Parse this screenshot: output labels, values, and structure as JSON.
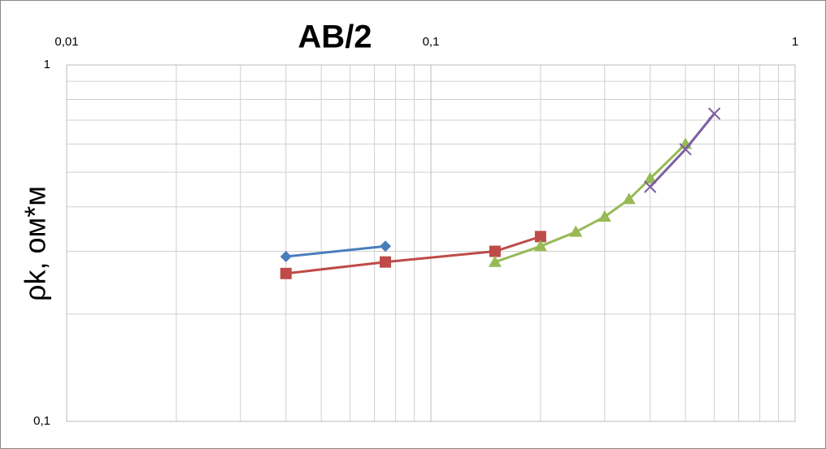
{
  "chart_data": {
    "type": "line",
    "title": "AB/2",
    "y_label": "ρk, ом*м",
    "xscale": "log",
    "yscale": "log",
    "grid": true,
    "xlim": [
      0.01,
      1
    ],
    "xticks": [
      {
        "value": 0.01,
        "label": "0,01"
      },
      {
        "value": 0.1,
        "label": "0,1"
      },
      1
    ],
    "xminorticks": [
      0.02,
      0.03,
      0.04,
      0.05,
      0.06,
      0.07,
      0.08,
      0.09,
      0.2,
      0.3,
      0.4,
      0.5,
      0.6,
      0.7,
      0.8,
      0.9
    ],
    "ylim": [
      0.1,
      1
    ],
    "yticks": [
      {
        "value": 0.1,
        "label": "0,1"
      },
      1
    ],
    "yminorticks": [
      0.2,
      0.3,
      0.4,
      0.5,
      0.6,
      0.7,
      0.8,
      0.9
    ],
    "series": [
      {
        "color": "#4a7ebb",
        "marker": "diamond",
        "x": [
          0.04,
          0.075
        ],
        "values": [
          0.29,
          0.31
        ]
      },
      {
        "color": "#be4b48",
        "marker": "square",
        "x": [
          0.04,
          0.075,
          0.15,
          0.2
        ],
        "values": [
          0.26,
          0.28,
          0.3,
          0.33
        ]
      },
      {
        "color": "#98b954",
        "marker": "triangle",
        "x": [
          0.15,
          0.2,
          0.25,
          0.3,
          0.35,
          0.4,
          0.5
        ],
        "values": [
          0.28,
          0.31,
          0.34,
          0.375,
          0.42,
          0.48,
          0.6
        ]
      },
      {
        "color": "#7d60a0",
        "marker": "x",
        "x": [
          0.4,
          0.5,
          0.6
        ],
        "values": [
          0.455,
          0.58,
          0.73
        ]
      }
    ]
  }
}
